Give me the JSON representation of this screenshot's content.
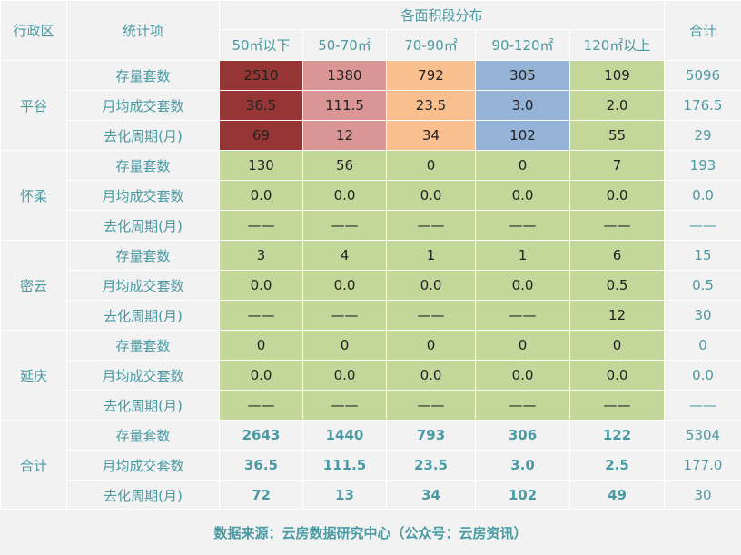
{
  "header": {
    "region_label": "行政区",
    "metric_label": "统计项",
    "group_label": "各面积段分布",
    "total_label": "合计",
    "bands": [
      "50㎡以下",
      "50-70㎡",
      "70-90㎡",
      "90-120㎡",
      "120㎡以上"
    ]
  },
  "colors": {
    "accent_text": "#4a9aa3",
    "green": "#c4d79b",
    "dark_red": "#963634",
    "pink": "#da9694",
    "orange": "#fabf8f",
    "blue": "#95b3d7"
  },
  "regions": [
    {
      "name": "平谷",
      "rows": [
        {
          "metric": "存量套数",
          "values": [
            "2510",
            "1380",
            "792",
            "305",
            "109"
          ],
          "total": "5096"
        },
        {
          "metric": "月均成交套数",
          "values": [
            "36.5",
            "111.5",
            "23.5",
            "3.0",
            "2.0"
          ],
          "total": "176.5"
        },
        {
          "metric": "去化周期(月)",
          "values": [
            "69",
            "12",
            "34",
            "102",
            "55"
          ],
          "total": "29"
        }
      ]
    },
    {
      "name": "怀柔",
      "rows": [
        {
          "metric": "存量套数",
          "values": [
            "130",
            "56",
            "0",
            "0",
            "7"
          ],
          "total": "193"
        },
        {
          "metric": "月均成交套数",
          "values": [
            "0.0",
            "0.0",
            "0.0",
            "0.0",
            "0.0"
          ],
          "total": "0.0"
        },
        {
          "metric": "去化周期(月)",
          "values": [
            "——",
            "——",
            "——",
            "——",
            "——"
          ],
          "total": "——"
        }
      ]
    },
    {
      "name": "密云",
      "rows": [
        {
          "metric": "存量套数",
          "values": [
            "3",
            "4",
            "1",
            "1",
            "6"
          ],
          "total": "15"
        },
        {
          "metric": "月均成交套数",
          "values": [
            "0.0",
            "0.0",
            "0.0",
            "0.0",
            "0.5"
          ],
          "total": "0.5"
        },
        {
          "metric": "去化周期(月)",
          "values": [
            "——",
            "——",
            "——",
            "——",
            "12"
          ],
          "total": "30"
        }
      ]
    },
    {
      "name": "延庆",
      "rows": [
        {
          "metric": "存量套数",
          "values": [
            "0",
            "0",
            "0",
            "0",
            "0"
          ],
          "total": "0"
        },
        {
          "metric": "月均成交套数",
          "values": [
            "0.0",
            "0.0",
            "0.0",
            "0.0",
            "0.0"
          ],
          "total": "0.0"
        },
        {
          "metric": "去化周期(月)",
          "values": [
            "——",
            "——",
            "——",
            "——",
            "——"
          ],
          "total": "——"
        }
      ]
    },
    {
      "name": "合计",
      "rows": [
        {
          "metric": "存量套数",
          "values": [
            "2643",
            "1440",
            "793",
            "306",
            "122"
          ],
          "total": "5304"
        },
        {
          "metric": "月均成交套数",
          "values": [
            "36.5",
            "111.5",
            "23.5",
            "3.0",
            "2.5"
          ],
          "total": "177.0"
        },
        {
          "metric": "去化周期(月)",
          "values": [
            "72",
            "13",
            "34",
            "102",
            "49"
          ],
          "total": "30"
        }
      ]
    }
  ],
  "footer": {
    "source": "数据来源：云房数据研究中心（公众号：云房资讯）"
  }
}
